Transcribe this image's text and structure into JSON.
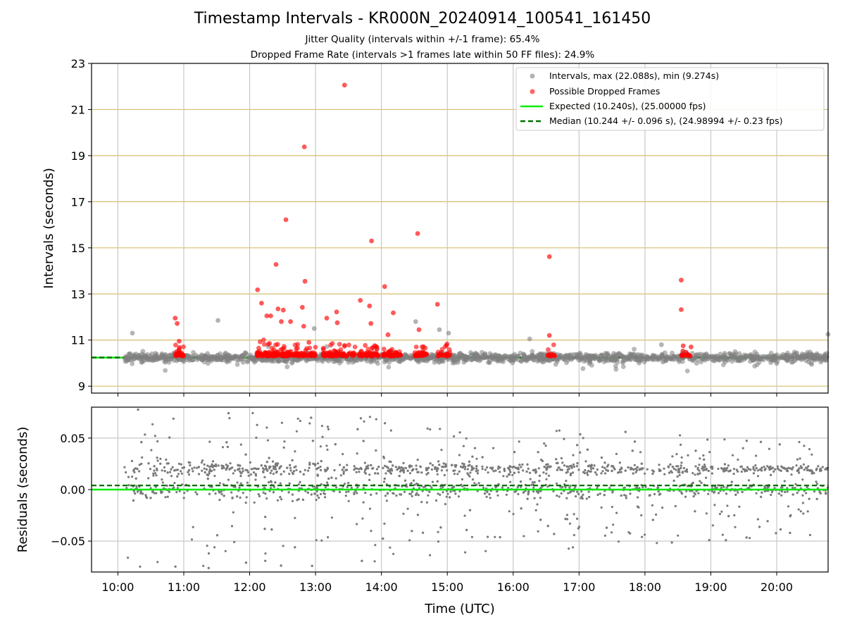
{
  "figure": {
    "title": "Timestamp Intervals - KR000N_20240914_100541_161450",
    "subtitle_1": "Jitter Quality (intervals within +/-1 frame): 65.4%",
    "subtitle_2": "Dropped Frame Rate (intervals >1 frames late within 50 FF files): 24.9%"
  },
  "chart_data": [
    {
      "type": "scatter",
      "panel": "top",
      "ylabel": "Intervals (seconds)",
      "xlabel": "",
      "xlim_hours": [
        9.6,
        20.78
      ],
      "ylim": [
        8.7,
        23
      ],
      "yticks": [
        9,
        11,
        13,
        15,
        17,
        19,
        21,
        23
      ],
      "ytick_labels": [
        "9",
        "11",
        "13",
        "15",
        "17",
        "19",
        "21",
        "23"
      ],
      "grid": true,
      "colors": {
        "intervals": "#808080",
        "dropped": "#ff0000",
        "expected": "#00ee00",
        "median": "#007000",
        "ygrid": "#d4be6e",
        "xgrid": "#c8c8c8"
      },
      "legend": {
        "placement": "top-right",
        "entries": [
          {
            "label": "Intervals, max (22.088s), min (9.274s)",
            "marker": "gray-dot"
          },
          {
            "label": "Possible Dropped Frames",
            "marker": "red-dot"
          },
          {
            "label": "Expected (10.240s), (25.00000 fps)",
            "marker": "green-line"
          },
          {
            "label": "Median (10.244 +/- 0.096 s), (24.98994 +/- 0.23 fps)",
            "marker": "dashed-green-line"
          }
        ]
      },
      "expected_value": 10.24,
      "median_value": 10.244,
      "series": [
        {
          "name": "Possible Dropped Frames",
          "points": [
            [
              10.87,
              11.95
            ],
            [
              10.9,
              11.72
            ],
            [
              10.93,
              10.95
            ],
            [
              12.12,
              13.18
            ],
            [
              12.18,
              12.6
            ],
            [
              12.26,
              12.05
            ],
            [
              12.32,
              12.05
            ],
            [
              12.4,
              14.28
            ],
            [
              12.43,
              12.35
            ],
            [
              12.48,
              11.8
            ],
            [
              12.51,
              12.3
            ],
            [
              12.55,
              16.22
            ],
            [
              12.62,
              11.8
            ],
            [
              12.8,
              12.42
            ],
            [
              12.82,
              11.6
            ],
            [
              12.84,
              13.55
            ],
            [
              12.83,
              19.38
            ],
            [
              12.9,
              10.9
            ],
            [
              13.17,
              11.95
            ],
            [
              13.32,
              12.22
            ],
            [
              13.33,
              11.75
            ],
            [
              13.44,
              22.06
            ],
            [
              13.68,
              12.72
            ],
            [
              13.82,
              12.48
            ],
            [
              13.84,
              11.72
            ],
            [
              13.85,
              15.3
            ],
            [
              14.05,
              13.32
            ],
            [
              14.1,
              11.23
            ],
            [
              14.18,
              12.18
            ],
            [
              14.55,
              15.62
            ],
            [
              14.57,
              11.45
            ],
            [
              14.85,
              12.55
            ],
            [
              16.55,
              14.62
            ],
            [
              16.55,
              11.2
            ],
            [
              18.55,
              13.6
            ],
            [
              18.55,
              12.32
            ],
            [
              18.58,
              10.75
            ],
            [
              18.7,
              10.7
            ]
          ]
        }
      ]
    },
    {
      "type": "scatter",
      "panel": "bottom",
      "ylabel": "Residuals (seconds)",
      "xlabel": "Time (UTC)",
      "xlim_hours": [
        9.6,
        20.78
      ],
      "ylim": [
        -0.08,
        0.08
      ],
      "yticks": [
        -0.05,
        0.0,
        0.05
      ],
      "ytick_labels": [
        "−0.05",
        "0.00",
        "0.05"
      ],
      "xticks_hours": [
        10,
        11,
        12,
        13,
        14,
        15,
        16,
        17,
        18,
        19,
        20
      ],
      "xtick_labels": [
        "10:00",
        "11:00",
        "12:00",
        "13:00",
        "14:00",
        "15:00",
        "16:00",
        "17:00",
        "18:00",
        "19:00",
        "20:00"
      ],
      "grid": true,
      "expected_line": 0.0,
      "median_line": 0.004,
      "colors": {
        "points": "#7a7a7a",
        "expected": "#00ee00",
        "median": "#007000"
      }
    }
  ]
}
